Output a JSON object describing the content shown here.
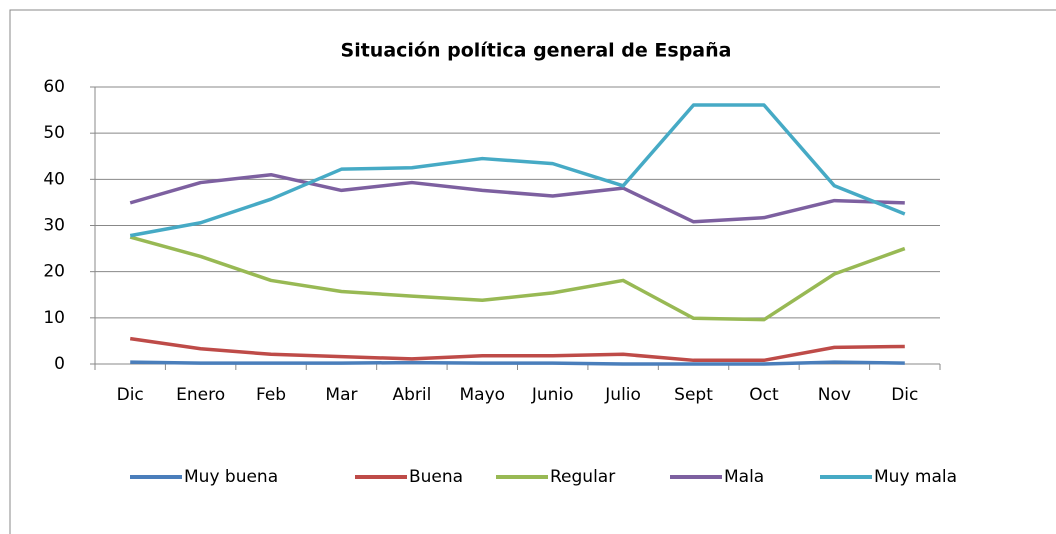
{
  "chart_data": {
    "type": "line",
    "title": "Situación política general de España",
    "categories": [
      "Dic",
      "Enero",
      "Feb",
      "Mar",
      "Abril",
      "Mayo",
      "Junio",
      "Julio",
      "Sept",
      "Oct",
      "Nov",
      "Dic"
    ],
    "series": [
      {
        "name": "Muy buena",
        "color": "#4a7ebb",
        "values": [
          0.4,
          0.2,
          0.2,
          0.2,
          0.3,
          0.2,
          0.2,
          0,
          0,
          0,
          0.4,
          0.2
        ]
      },
      {
        "name": "Buena",
        "color": "#be4b48",
        "values": [
          5.5,
          3.3,
          2.1,
          1.6,
          1.1,
          1.8,
          1.8,
          2.1,
          0.8,
          0.8,
          3.6,
          3.8
        ]
      },
      {
        "name": "Regular",
        "color": "#98b954",
        "values": [
          27.5,
          23.3,
          18.1,
          15.7,
          14.7,
          13.8,
          15.4,
          18.1,
          9.9,
          9.6,
          19.5,
          25
        ]
      },
      {
        "name": "Mala",
        "color": "#7d60a0",
        "values": [
          34.9,
          39.3,
          41,
          37.6,
          39.3,
          37.6,
          36.4,
          38.1,
          30.8,
          31.7,
          35.4,
          34.9
        ]
      },
      {
        "name": "Muy mala",
        "color": "#46aac5",
        "values": [
          27.8,
          30.6,
          35.7,
          42.2,
          42.5,
          44.5,
          43.4,
          38.6,
          56.1,
          56.1,
          38.6,
          32.5
        ]
      }
    ],
    "ylim": [
      0,
      60
    ],
    "yticks": [
      0,
      10,
      20,
      30,
      40,
      50,
      60
    ],
    "grid": true,
    "legend": "bottom"
  }
}
